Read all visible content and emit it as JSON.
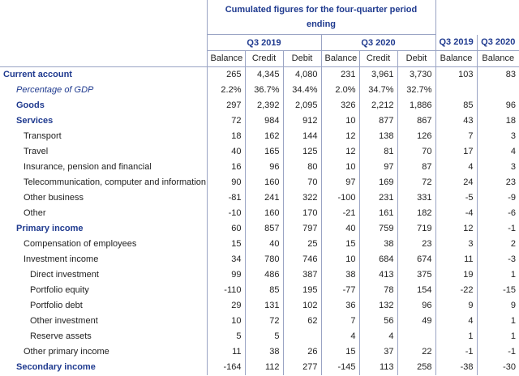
{
  "header": {
    "title": "Cumulated figures for the four-quarter period ending",
    "period_a": "Q3 2019",
    "period_b": "Q3 2020",
    "quarter_a": "Q3 2019",
    "quarter_b": "Q3 2020",
    "columns": [
      "Balance",
      "Credit",
      "Debit",
      "Balance",
      "Credit",
      "Debit",
      "Balance",
      "Balance"
    ]
  },
  "rows": [
    {
      "label": "Current account",
      "style": "main0",
      "values": [
        "265",
        "4,345",
        "4,080",
        "231",
        "3,961",
        "3,730",
        "103",
        "83"
      ]
    },
    {
      "label": "Percentage of GDP",
      "style": "pct",
      "values": [
        "2.2%",
        "36.7%",
        "34.4%",
        "2.0%",
        "34.7%",
        "32.7%",
        "",
        ""
      ]
    },
    {
      "label": "Goods",
      "style": "main1",
      "values": [
        "297",
        "2,392",
        "2,095",
        "326",
        "2,212",
        "1,886",
        "85",
        "96"
      ]
    },
    {
      "label": "Services",
      "style": "main1",
      "values": [
        "72",
        "984",
        "912",
        "10",
        "877",
        "867",
        "43",
        "18"
      ]
    },
    {
      "label": "Transport",
      "style": "lvl2",
      "values": [
        "18",
        "162",
        "144",
        "12",
        "138",
        "126",
        "7",
        "3"
      ]
    },
    {
      "label": "Travel",
      "style": "lvl2",
      "values": [
        "40",
        "165",
        "125",
        "12",
        "81",
        "70",
        "17",
        "4"
      ]
    },
    {
      "label": "Insurance, pension and financial",
      "style": "lvl2",
      "values": [
        "16",
        "96",
        "80",
        "10",
        "97",
        "87",
        "4",
        "3"
      ]
    },
    {
      "label": "Telecommunication, computer and information",
      "style": "lvl2",
      "values": [
        "90",
        "160",
        "70",
        "97",
        "169",
        "72",
        "24",
        "23"
      ]
    },
    {
      "label": "Other business",
      "style": "lvl2",
      "values": [
        "-81",
        "241",
        "322",
        "-100",
        "231",
        "331",
        "-5",
        "-9"
      ]
    },
    {
      "label": "Other",
      "style": "lvl2",
      "values": [
        "-10",
        "160",
        "170",
        "-21",
        "161",
        "182",
        "-4",
        "-6"
      ]
    },
    {
      "label": "Primary income",
      "style": "main1",
      "values": [
        "60",
        "857",
        "797",
        "40",
        "759",
        "719",
        "12",
        "-1"
      ]
    },
    {
      "label": "Compensation of employees",
      "style": "lvl2",
      "values": [
        "15",
        "40",
        "25",
        "15",
        "38",
        "23",
        "3",
        "2"
      ]
    },
    {
      "label": "Investment income",
      "style": "lvl2",
      "values": [
        "34",
        "780",
        "746",
        "10",
        "684",
        "674",
        "11",
        "-3"
      ]
    },
    {
      "label": "Direct investment",
      "style": "lvl3",
      "values": [
        "99",
        "486",
        "387",
        "38",
        "413",
        "375",
        "19",
        "1"
      ]
    },
    {
      "label": "Portfolio equity",
      "style": "lvl3",
      "values": [
        "-110",
        "85",
        "195",
        "-77",
        "78",
        "154",
        "-22",
        "-15"
      ]
    },
    {
      "label": "Portfolio debt",
      "style": "lvl3",
      "values": [
        "29",
        "131",
        "102",
        "36",
        "132",
        "96",
        "9",
        "9"
      ]
    },
    {
      "label": "Other investment",
      "style": "lvl3",
      "values": [
        "10",
        "72",
        "62",
        "7",
        "56",
        "49",
        "4",
        "1"
      ]
    },
    {
      "label": "Reserve assets",
      "style": "lvl3",
      "values": [
        "5",
        "5",
        "",
        "4",
        "4",
        "",
        "1",
        "1"
      ]
    },
    {
      "label": "Other primary income",
      "style": "lvl2",
      "values": [
        "11",
        "38",
        "26",
        "15",
        "37",
        "22",
        "-1",
        "-1"
      ]
    },
    {
      "label": "Secondary income",
      "style": "main1",
      "values": [
        "-164",
        "112",
        "277",
        "-145",
        "113",
        "258",
        "-38",
        "-30"
      ]
    }
  ]
}
